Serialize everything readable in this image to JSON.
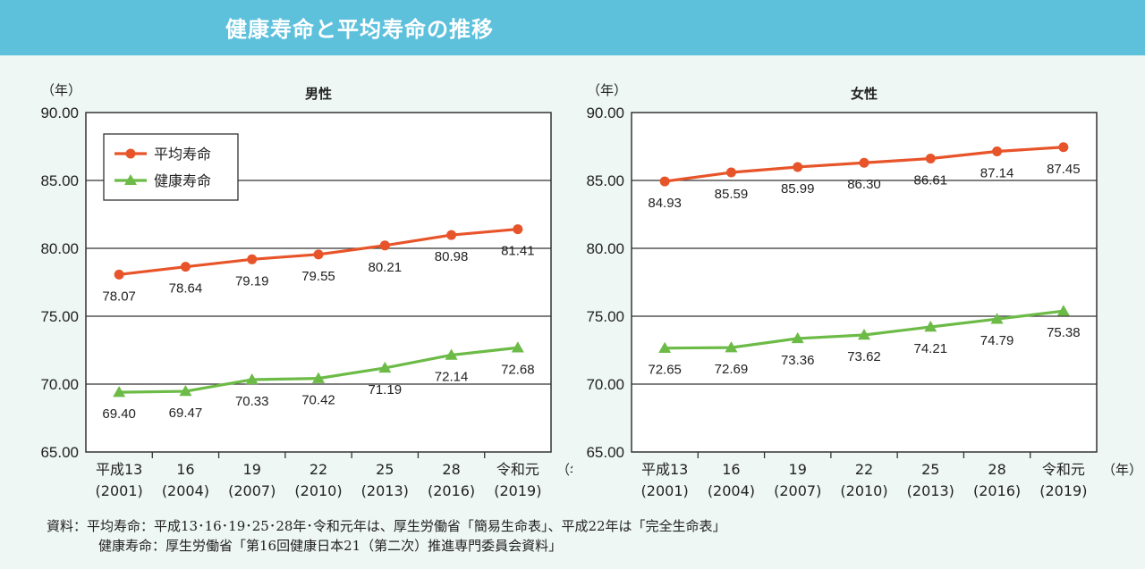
{
  "header": {
    "title": "健康寿命と平均寿命の推移"
  },
  "colors": {
    "header": "#5ec1dc",
    "avg": "#e8542a",
    "healthy": "#6cbb47",
    "background": "#eef7f3"
  },
  "chart_data": [
    {
      "type": "line",
      "title": "男性",
      "yunit": "（年）",
      "xunit": "（年）",
      "ylim": [
        65,
        90
      ],
      "yticks": [
        "90.00",
        "85.00",
        "80.00",
        "75.00",
        "70.00",
        "65.00"
      ],
      "categories": [
        "平成13",
        "16",
        "19",
        "22",
        "25",
        "28",
        "令和元"
      ],
      "categories_sub": [
        "(2001)",
        "(2004)",
        "(2007)",
        "(2010)",
        "(2013)",
        "(2016)",
        "(2019)"
      ],
      "legend": true,
      "series": [
        {
          "name": "平均寿命",
          "values": [
            78.07,
            78.64,
            79.19,
            79.55,
            80.21,
            80.98,
            81.41
          ],
          "labels": [
            "78.07",
            "78.64",
            "79.19",
            "79.55",
            "80.21",
            "80.98",
            "81.41"
          ]
        },
        {
          "name": "健康寿命",
          "values": [
            69.4,
            69.47,
            70.33,
            70.42,
            71.19,
            72.14,
            72.68
          ],
          "labels": [
            "69.40",
            "69.47",
            "70.33",
            "70.42",
            "71.19",
            "72.14",
            "72.68"
          ]
        }
      ]
    },
    {
      "type": "line",
      "title": "女性",
      "yunit": "（年）",
      "xunit": "（年）",
      "ylim": [
        65,
        90
      ],
      "yticks": [
        "90.00",
        "85.00",
        "80.00",
        "75.00",
        "70.00",
        "65.00"
      ],
      "categories": [
        "平成13",
        "16",
        "19",
        "22",
        "25",
        "28",
        "令和元"
      ],
      "categories_sub": [
        "(2001)",
        "(2004)",
        "(2007)",
        "(2010)",
        "(2013)",
        "(2016)",
        "(2019)"
      ],
      "legend": false,
      "series": [
        {
          "name": "平均寿命",
          "values": [
            84.93,
            85.59,
            85.99,
            86.3,
            86.61,
            87.14,
            87.45
          ],
          "labels": [
            "84.93",
            "85.59",
            "85.99",
            "86.30",
            "86.61",
            "87.14",
            "87.45"
          ]
        },
        {
          "name": "健康寿命",
          "values": [
            72.65,
            72.69,
            73.36,
            73.62,
            74.21,
            74.79,
            75.38
          ],
          "labels": [
            "72.65",
            "72.69",
            "73.36",
            "73.62",
            "74.21",
            "74.79",
            "75.38"
          ]
        }
      ]
    }
  ],
  "source": {
    "line1": "資料：平均寿命：平成13･16･19･25･28年･令和元年は、厚生労働省「簡易生命表」、平成22年は「完全生命表」",
    "line2": "健康寿命：厚生労働省「第16回健康日本21（第二次）推進専門委員会資料」"
  }
}
